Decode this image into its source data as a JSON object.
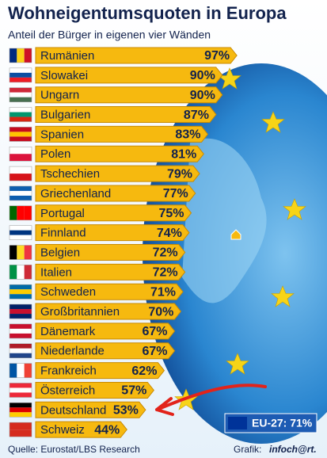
{
  "chart_data": {
    "type": "bar",
    "orientation": "horizontal",
    "title": "Wohneigentumsquoten in Europa",
    "subtitle": "Anteil der Bürger in eigenen vier Wänden",
    "categories": [
      "Rumänien",
      "Slowakei",
      "Ungarn",
      "Bulgarien",
      "Spanien",
      "Polen",
      "Tschechien",
      "Griechenland",
      "Portugal",
      "Finnland",
      "Belgien",
      "Italien",
      "Schweden",
      "Großbritannien",
      "Dänemark",
      "Niederlande",
      "Frankreich",
      "Österreich",
      "Deutschland",
      "Schweiz"
    ],
    "values": [
      97,
      90,
      90,
      87,
      83,
      81,
      79,
      77,
      75,
      74,
      72,
      72,
      71,
      70,
      67,
      67,
      62,
      57,
      53,
      44
    ],
    "value_labels": [
      "97%",
      "90%",
      "90%",
      "87%",
      "83%",
      "81%",
      "79%",
      "77%",
      "75%",
      "74%",
      "72%",
      "72%",
      "71%",
      "70%",
      "67%",
      "67%",
      "62%",
      "57%",
      "53%",
      "44%"
    ],
    "color": "#f6b90f",
    "xlim": [
      0,
      100
    ],
    "annotation": "EU-27: 71%",
    "source": "Quelle: Eurostat/LBS Research",
    "credit_prefix": "Grafik:",
    "credit": "infoch@rt."
  }
}
